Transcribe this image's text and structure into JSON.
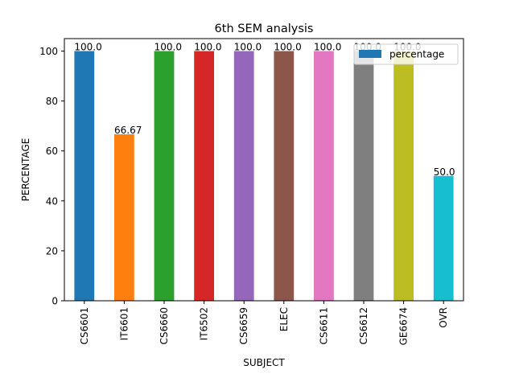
{
  "chart_data": {
    "type": "bar",
    "title": "6th SEM analysis",
    "xlabel": "SUBJECT",
    "ylabel": "PERCENTAGE",
    "categories": [
      "CS6601",
      "IT6601",
      "CS6660",
      "IT6502",
      "CS6659",
      "ELEC",
      "CS6611",
      "CS6612",
      "GE6674",
      "OVR"
    ],
    "series": [
      {
        "name": "percentage",
        "values": [
          100.0,
          66.67,
          100.0,
          100.0,
          100.0,
          100.0,
          100.0,
          100.0,
          100.0,
          50.0
        ]
      }
    ],
    "data_labels": [
      "100.0",
      "66.67",
      "100.0",
      "100.0",
      "100.0",
      "100.0",
      "100.0",
      "100.0",
      "100.0",
      "50.0"
    ],
    "bar_colors": [
      "#1f77b4",
      "#ff7f0e",
      "#2ca02c",
      "#d62728",
      "#9467bd",
      "#8c564b",
      "#e377c2",
      "#7f7f7f",
      "#bcbd22",
      "#17becf"
    ],
    "legend_color": "#1f77b4",
    "ylim": [
      0,
      105
    ],
    "yticks": [
      0,
      20,
      40,
      60,
      80,
      100
    ],
    "grid": false,
    "legend_position": "top-right"
  }
}
